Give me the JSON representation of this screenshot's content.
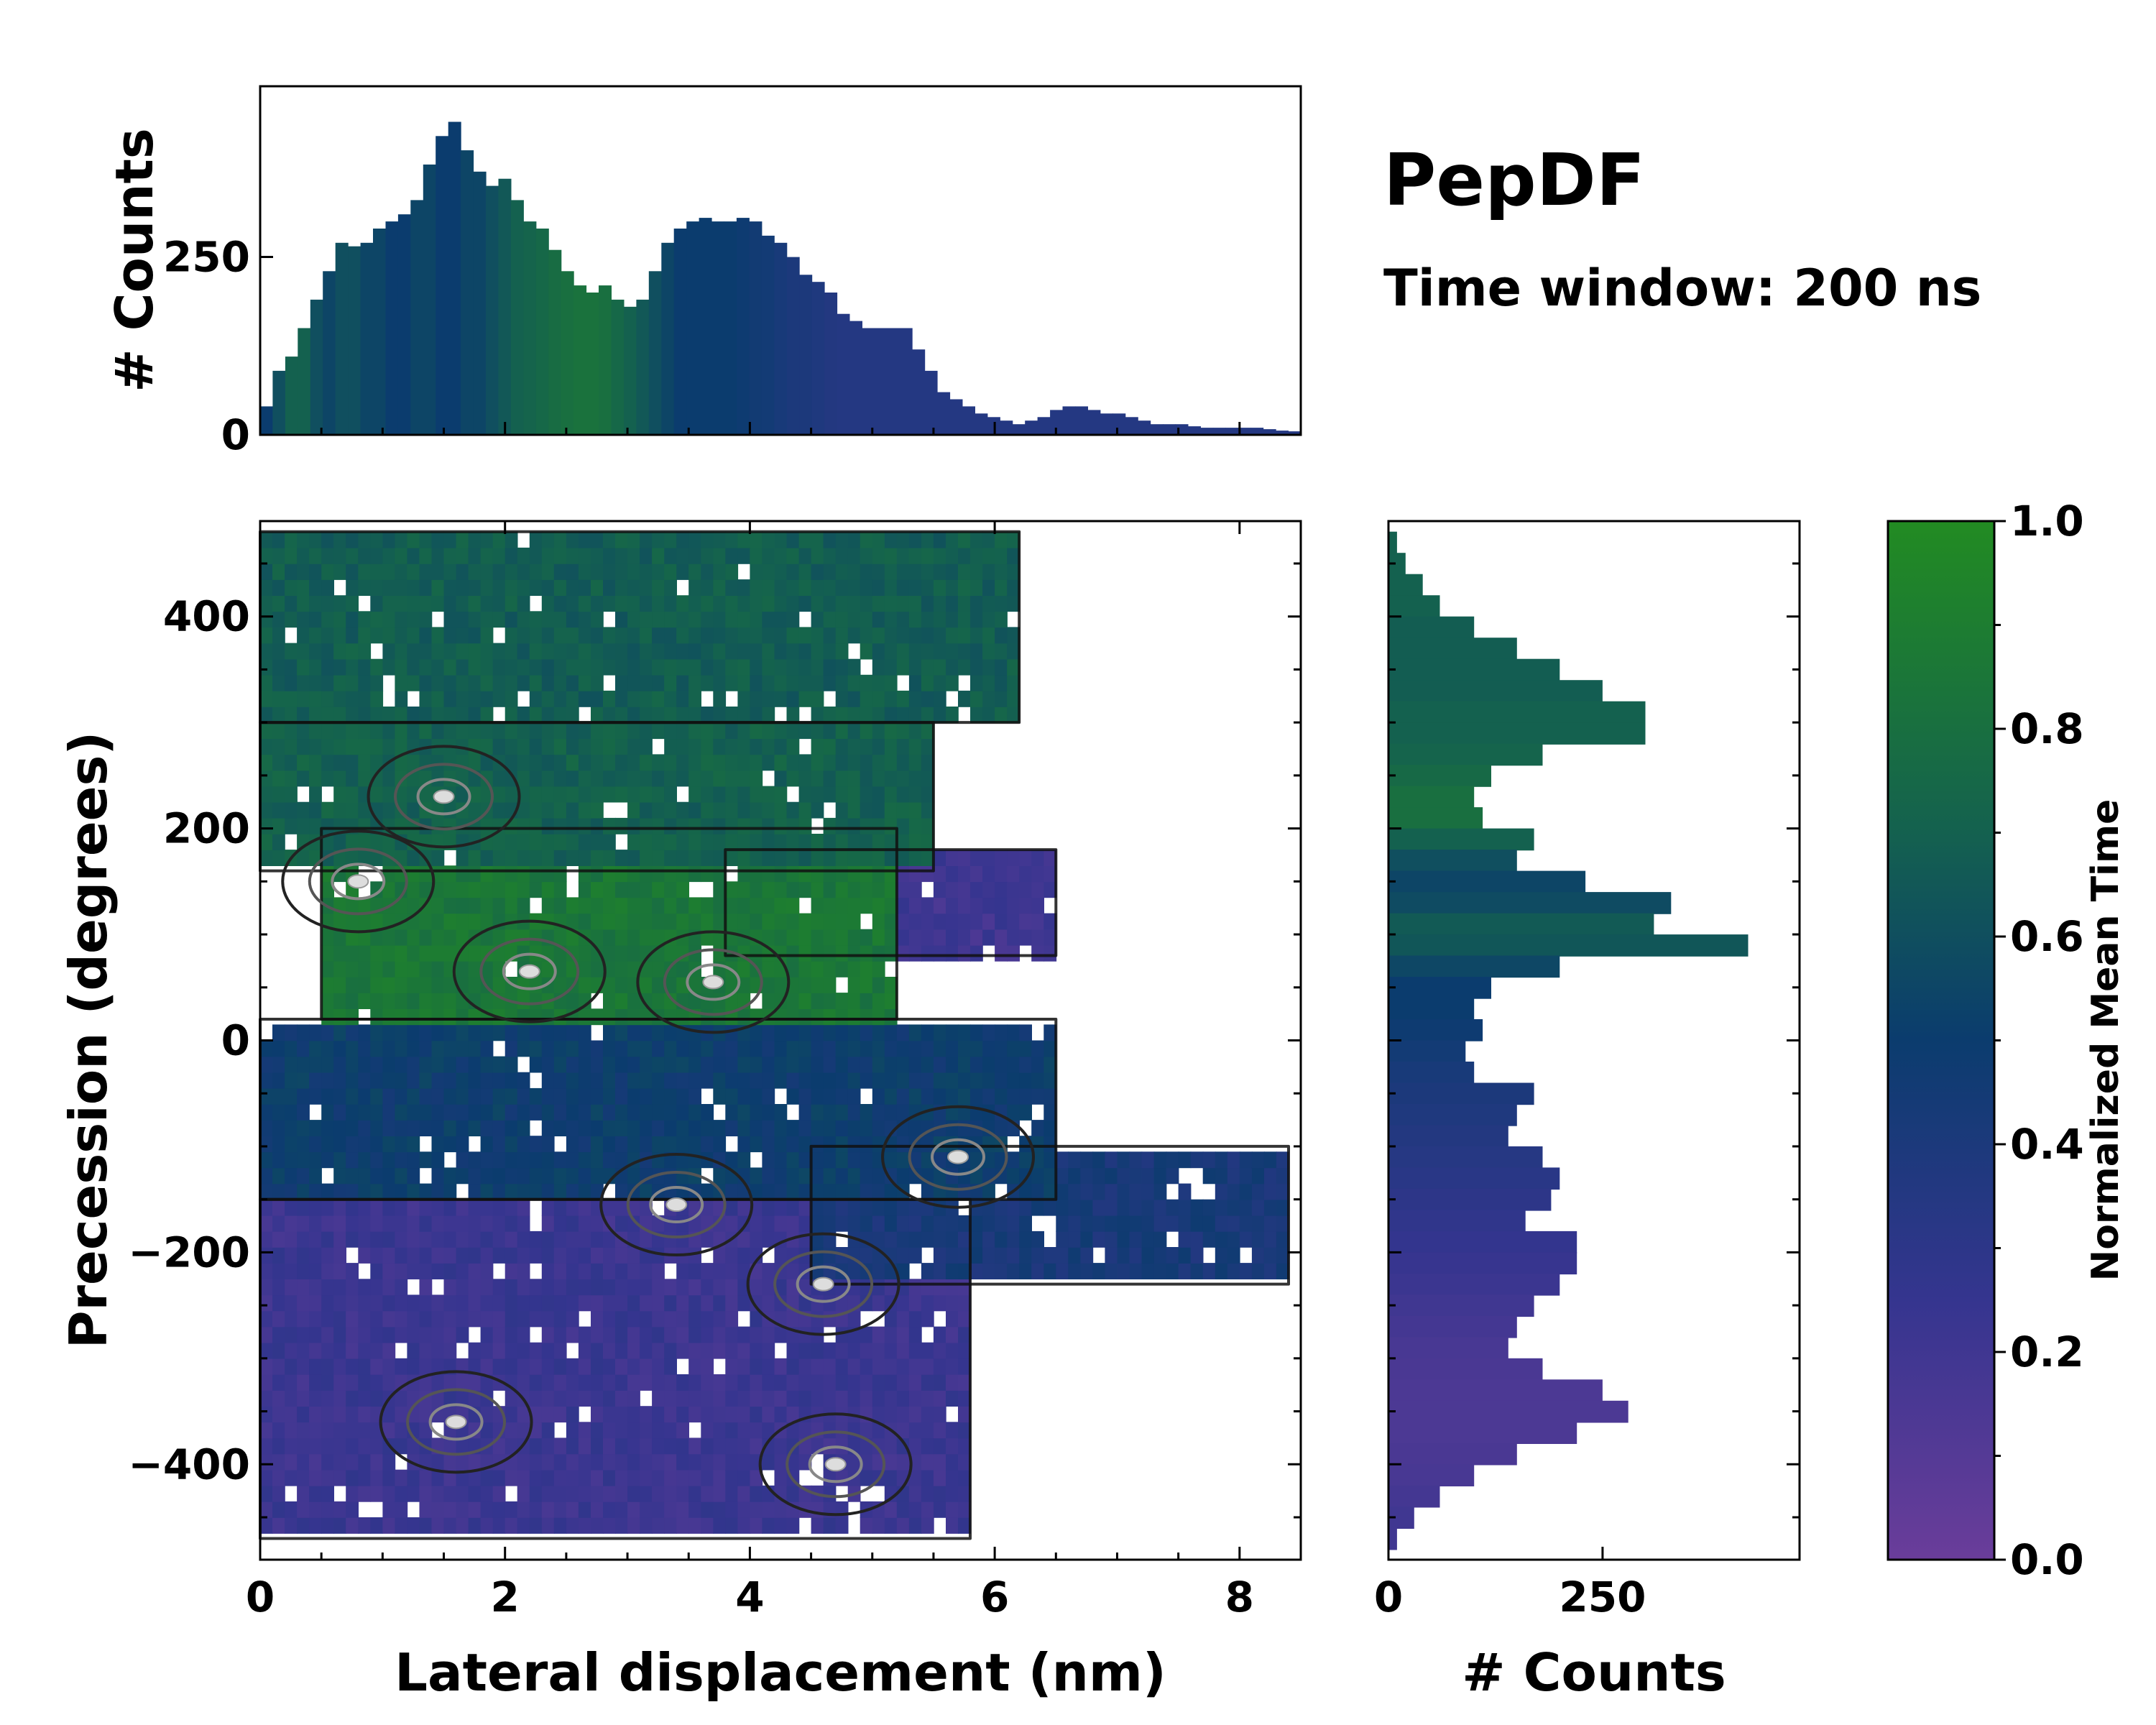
{
  "annotation": {
    "title": "PepDF",
    "subtitle": "Time window: 200 ns"
  },
  "colors": {
    "low": "#6a3d9a",
    "mid": "#0b3c6e",
    "high": "#228b22"
  },
  "chart_data": [
    {
      "id": "top-histogram",
      "type": "bar",
      "title": "",
      "xlabel": "",
      "ylabel": "# Counts",
      "xlim": [
        0,
        8.5
      ],
      "ylim": [
        0,
        490
      ],
      "yticks": [
        0,
        250
      ],
      "x": [
        0.1,
        0.2,
        0.3,
        0.4,
        0.5,
        0.6,
        0.7,
        0.8,
        0.9,
        1.0,
        1.1,
        1.2,
        1.3,
        1.4,
        1.5,
        1.6,
        1.7,
        1.8,
        1.9,
        2.0,
        2.1,
        2.2,
        2.3,
        2.4,
        2.5,
        2.6,
        2.7,
        2.8,
        2.9,
        3.0,
        3.1,
        3.2,
        3.3,
        3.4,
        3.5,
        3.6,
        3.7,
        3.8,
        3.9,
        4.0,
        4.1,
        4.2,
        4.3,
        4.4,
        4.5,
        4.6,
        4.7,
        4.8,
        4.9,
        5.0,
        5.1,
        5.2,
        5.3,
        5.4,
        5.5,
        5.6,
        5.7,
        5.8,
        5.9,
        6.0,
        6.1,
        6.2,
        6.3,
        6.4,
        6.5,
        6.6,
        6.7,
        6.8,
        6.9,
        7.0,
        7.1,
        7.2,
        7.3,
        7.4,
        7.5,
        7.6,
        7.7,
        7.8,
        7.9,
        8.0,
        8.1,
        8.2,
        8.3
      ],
      "counts": [
        40,
        90,
        110,
        150,
        190,
        230,
        270,
        265,
        270,
        290,
        300,
        310,
        330,
        380,
        420,
        440,
        400,
        370,
        350,
        360,
        330,
        300,
        290,
        260,
        230,
        210,
        200,
        210,
        190,
        180,
        190,
        230,
        270,
        290,
        300,
        305,
        300,
        300,
        305,
        300,
        280,
        270,
        250,
        225,
        215,
        200,
        170,
        160,
        150,
        150,
        150,
        150,
        120,
        90,
        60,
        50,
        40,
        30,
        25,
        20,
        15,
        20,
        25,
        35,
        40,
        40,
        35,
        30,
        30,
        25,
        20,
        15,
        15,
        15,
        12,
        10,
        10,
        10,
        10,
        10,
        8,
        6,
        5
      ],
      "mean_time": [
        0.5,
        0.6,
        0.7,
        0.7,
        0.6,
        0.55,
        0.6,
        0.6,
        0.55,
        0.55,
        0.5,
        0.5,
        0.55,
        0.55,
        0.5,
        0.5,
        0.55,
        0.55,
        0.6,
        0.65,
        0.7,
        0.72,
        0.75,
        0.78,
        0.8,
        0.82,
        0.82,
        0.8,
        0.75,
        0.7,
        0.65,
        0.6,
        0.55,
        0.5,
        0.5,
        0.5,
        0.5,
        0.5,
        0.48,
        0.46,
        0.45,
        0.42,
        0.4,
        0.4,
        0.38,
        0.36,
        0.35,
        0.35,
        0.35,
        0.35,
        0.35,
        0.35,
        0.35,
        0.35,
        0.35,
        0.35,
        0.35,
        0.35,
        0.35,
        0.35,
        0.35,
        0.35,
        0.35,
        0.35,
        0.35,
        0.35,
        0.35,
        0.35,
        0.35,
        0.35,
        0.35,
        0.35,
        0.35,
        0.35,
        0.35,
        0.35,
        0.35,
        0.35,
        0.35,
        0.35,
        0.35,
        0.35,
        0.35
      ]
    },
    {
      "id": "right-histogram",
      "type": "bar",
      "orientation": "horizontal",
      "title": "",
      "xlabel": "# Counts",
      "ylabel": "",
      "xlim": [
        0,
        480
      ],
      "xticks": [
        0,
        250
      ],
      "ylim": [
        -490,
        490
      ],
      "y": [
        470,
        450,
        430,
        410,
        390,
        370,
        350,
        330,
        310,
        290,
        270,
        250,
        230,
        210,
        190,
        170,
        150,
        130,
        110,
        90,
        70,
        50,
        30,
        10,
        -10,
        -30,
        -50,
        -70,
        -90,
        -110,
        -130,
        -150,
        -170,
        -190,
        -210,
        -230,
        -250,
        -270,
        -290,
        -310,
        -330,
        -350,
        -370,
        -390,
        -410,
        -430,
        -450,
        -470
      ],
      "counts": [
        10,
        20,
        40,
        60,
        100,
        150,
        200,
        250,
        300,
        300,
        180,
        120,
        100,
        110,
        170,
        150,
        230,
        330,
        310,
        420,
        200,
        120,
        100,
        110,
        90,
        100,
        170,
        150,
        140,
        180,
        200,
        190,
        160,
        220,
        220,
        200,
        170,
        150,
        140,
        180,
        250,
        280,
        220,
        150,
        100,
        60,
        30,
        10
      ],
      "mean_time": [
        0.7,
        0.7,
        0.7,
        0.7,
        0.68,
        0.68,
        0.68,
        0.68,
        0.7,
        0.7,
        0.72,
        0.76,
        0.8,
        0.8,
        0.7,
        0.6,
        0.55,
        0.58,
        0.66,
        0.64,
        0.56,
        0.5,
        0.5,
        0.48,
        0.45,
        0.42,
        0.4,
        0.38,
        0.36,
        0.34,
        0.32,
        0.3,
        0.28,
        0.26,
        0.24,
        0.22,
        0.2,
        0.18,
        0.16,
        0.15,
        0.14,
        0.14,
        0.14,
        0.15,
        0.16,
        0.18,
        0.2,
        0.2
      ]
    },
    {
      "id": "main-heatmap",
      "type": "heatmap",
      "title": "",
      "xlabel": "Lateral displacement (nm)",
      "ylabel": "Precession (degrees)",
      "xlim": [
        0,
        8.5
      ],
      "ylim": [
        -490,
        490
      ],
      "xticks": [
        0,
        2,
        4,
        6,
        8
      ],
      "yticks": [
        -400,
        -200,
        0,
        200,
        400
      ],
      "ytick_labels": [
        "−400",
        "−200",
        "0",
        "200",
        "400"
      ],
      "regions": [
        {
          "name": "upper-left",
          "x": [
            0,
            6.2
          ],
          "y": [
            300,
            480
          ],
          "mean_time": 0.68
        },
        {
          "name": "upper-band",
          "x": [
            0,
            5.5
          ],
          "y": [
            160,
            300
          ],
          "mean_time": 0.7
        },
        {
          "name": "green-core",
          "x": [
            0.5,
            5.2
          ],
          "y": [
            20,
            200
          ],
          "mean_time": 0.85
        },
        {
          "name": "purple-patch",
          "x": [
            3.8,
            6.5
          ],
          "y": [
            80,
            180
          ],
          "mean_time": 0.2
        },
        {
          "name": "central-blue",
          "x": [
            0,
            6.5
          ],
          "y": [
            -150,
            20
          ],
          "mean_time": 0.5
        },
        {
          "name": "right-tail",
          "x": [
            4.5,
            8.4
          ],
          "y": [
            -230,
            -100
          ],
          "mean_time": 0.42
        },
        {
          "name": "lower-purple",
          "x": [
            0,
            5.8
          ],
          "y": [
            -470,
            -150
          ],
          "mean_time": 0.22
        }
      ],
      "peaks": [
        {
          "x": 2.2,
          "y": 65
        },
        {
          "x": 3.7,
          "y": 55
        },
        {
          "x": 1.5,
          "y": 230
        },
        {
          "x": 0.8,
          "y": 150
        },
        {
          "x": 1.6,
          "y": -360
        },
        {
          "x": 4.7,
          "y": -400
        },
        {
          "x": 4.6,
          "y": -230
        },
        {
          "x": 5.7,
          "y": -110
        },
        {
          "x": 3.4,
          "y": -155
        }
      ]
    },
    {
      "id": "colorbar",
      "type": "colorbar",
      "label": "Normalized Mean Time",
      "range": [
        0,
        1
      ],
      "ticks": [
        "0.0",
        "0.2",
        "0.4",
        "0.6",
        "0.8",
        "1.0"
      ],
      "tick_values": [
        0.0,
        0.2,
        0.4,
        0.6,
        0.8,
        1.0
      ]
    }
  ]
}
